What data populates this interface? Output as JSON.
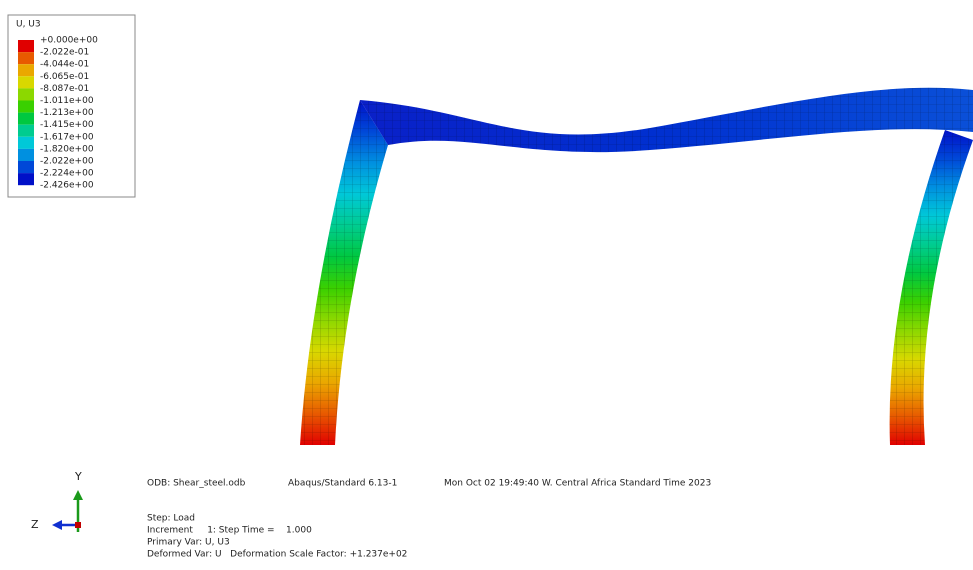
{
  "legend": {
    "title": "U, U3",
    "labels": [
      "+0.000e+00",
      "-2.022e-01",
      "-4.044e-01",
      "-6.065e-01",
      "-8.087e-01",
      "-1.011e+00",
      "-1.213e+00",
      "-1.415e+00",
      "-1.617e+00",
      "-1.820e+00",
      "-2.022e+00",
      "-2.224e+00",
      "-2.426e+00"
    ],
    "colors": [
      "#e00000",
      "#e85a00",
      "#eaa800",
      "#d8d800",
      "#8cd800",
      "#3ad000",
      "#00c840",
      "#00cc90",
      "#00c8d8",
      "#0090e0",
      "#0048d8",
      "#0010c8"
    ]
  },
  "triad": {
    "y_label": "Y",
    "z_label": "Z"
  },
  "info": {
    "odb": "ODB: Shear_steel.odb",
    "solver": "Abaqus/Standard 6.13-1",
    "date": "Mon Oct 02 19:49:40 W. Central Africa Standard Time 2023",
    "step": "Step: Load",
    "increment": "Increment     1: Step Time =    1.000",
    "primary": "Primary Var: U, U3",
    "deformed": "Deformed Var: U   Deformation Scale Factor: +1.237e+02"
  }
}
